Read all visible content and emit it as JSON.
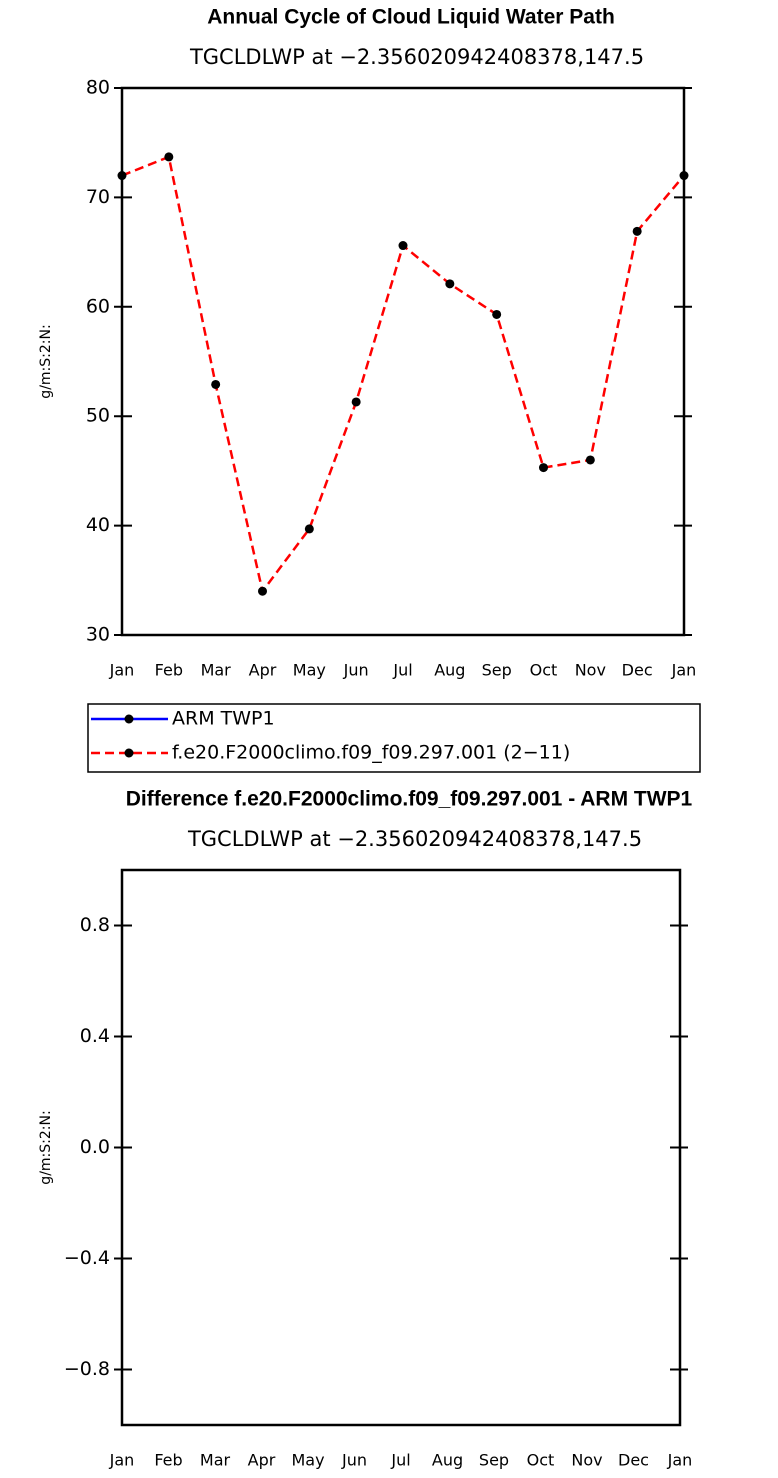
{
  "chart_data": [
    {
      "type": "line",
      "title": "Annual Cycle of Cloud Liquid Water Path",
      "subtitle": "TGCLDLWP at −2.356020942408378,147.5",
      "ylabel": "g/m:S:2:N:",
      "categories": [
        "Jan",
        "Feb",
        "Mar",
        "Apr",
        "May",
        "Jun",
        "Jul",
        "Aug",
        "Sep",
        "Oct",
        "Nov",
        "Dec",
        "Jan"
      ],
      "ylim": [
        30,
        80
      ],
      "yticks": [
        30,
        40,
        50,
        60,
        70,
        80
      ],
      "series": [
        {
          "name": "ARM TWP1",
          "color": "#0000ff",
          "line_style": "solid",
          "marker_color": "#000000",
          "values": [
            null,
            null,
            null,
            null,
            null,
            null,
            null,
            null,
            null,
            null,
            null,
            null,
            null
          ]
        },
        {
          "name": "f.e20.F2000climo.f09_f09.297.001 (2−11)",
          "color": "#ff0000",
          "line_style": "dashed",
          "marker_color": "#000000",
          "values": [
            72.0,
            73.7,
            52.9,
            34.0,
            39.7,
            51.3,
            65.6,
            62.1,
            59.3,
            45.3,
            46.0,
            66.9,
            72.0
          ]
        }
      ]
    },
    {
      "type": "line",
      "title": "Difference f.e20.F2000climo.f09_f09.297.001 - ARM TWP1",
      "subtitle": "TGCLDLWP at −2.356020942408378,147.5",
      "ylabel": "g/m:S:2:N:",
      "categories": [
        "Jan",
        "Feb",
        "Mar",
        "Apr",
        "May",
        "Jun",
        "Jul",
        "Aug",
        "Sep",
        "Oct",
        "Nov",
        "Dec",
        "Jan"
      ],
      "ylim": [
        -1,
        1
      ],
      "yticks": [
        {
          "value": -0.8,
          "label": "−0.8"
        },
        {
          "value": -0.4,
          "label": "−0.4"
        },
        {
          "value": 0,
          "label": "0.0"
        },
        0.4,
        0.8
      ],
      "series": []
    }
  ]
}
